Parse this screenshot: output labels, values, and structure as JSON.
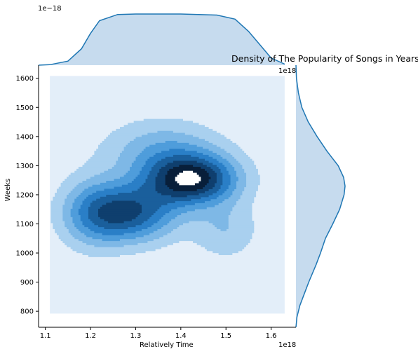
{
  "chart_data": {
    "type": "heatmap",
    "subtype": "joint-kde",
    "title": "Density of The Popularity of Songs in Years",
    "xlabel": "Relatively Time",
    "ylabel": "Weeks",
    "x_offset_label": "1e18",
    "x_offset_label_top": "1e18",
    "marginal_offset_label": "1e−18",
    "xlim": [
      1.085,
      1.655
    ],
    "ylim": [
      745,
      1645
    ],
    "xticks": [
      1.1,
      1.2,
      1.3,
      1.4,
      1.5,
      1.6
    ],
    "xtick_labels": [
      "1.1",
      "1.2",
      "1.3",
      "1.4",
      "1.5",
      "1.6"
    ],
    "yticks": [
      800,
      900,
      1000,
      1100,
      1200,
      1300,
      1400,
      1500,
      1600
    ],
    "ytick_labels": [
      "800",
      "900",
      "1000",
      "1100",
      "1200",
      "1300",
      "1400",
      "1500",
      "1600"
    ],
    "grid": false,
    "background_region": {
      "x": [
        1.11,
        1.63
      ],
      "y": [
        792,
        1608
      ]
    },
    "kde_peaks": [
      {
        "x": 1.282,
        "y": 1138,
        "weight": 1.0,
        "sx": 0.075,
        "sy": 70
      },
      {
        "x": 1.425,
        "y": 1252,
        "weight": 1.25,
        "sx": 0.07,
        "sy": 60
      },
      {
        "x": 1.36,
        "y": 1350,
        "weight": 0.45,
        "sx": 0.09,
        "sy": 75
      },
      {
        "x": 1.5,
        "y": 1080,
        "weight": 0.3,
        "sx": 0.05,
        "sy": 70
      },
      {
        "x": 1.2,
        "y": 1140,
        "weight": 0.35,
        "sx": 0.05,
        "sy": 90
      }
    ],
    "marginal_x": {
      "x": [
        1.085,
        1.11,
        1.15,
        1.18,
        1.2,
        1.22,
        1.26,
        1.3,
        1.4,
        1.48,
        1.52,
        1.55,
        1.58,
        1.6,
        1.63
      ],
      "density": [
        0.0,
        0.01,
        0.08,
        0.32,
        0.62,
        0.87,
        0.99,
        1.0,
        1.0,
        0.98,
        0.9,
        0.66,
        0.35,
        0.14,
        0.02
      ]
    },
    "marginal_y": {
      "y": [
        745,
        780,
        820,
        860,
        900,
        960,
        1000,
        1050,
        1100,
        1150,
        1200,
        1230,
        1260,
        1300,
        1350,
        1400,
        1450,
        1500,
        1550,
        1600,
        1645
      ],
      "density": [
        0.0,
        0.02,
        0.08,
        0.17,
        0.26,
        0.41,
        0.5,
        0.6,
        0.75,
        0.89,
        0.98,
        1.0,
        0.97,
        0.86,
        0.63,
        0.43,
        0.25,
        0.12,
        0.05,
        0.01,
        0.0
      ]
    },
    "levels": [
      0.1,
      0.22,
      0.34,
      0.46,
      0.58,
      0.7,
      0.82,
      0.94
    ],
    "level_colors": [
      "#a9d0ef",
      "#7eb8e6",
      "#4f9ddb",
      "#2a7fc7",
      "#1a5f9c",
      "#0f3f6e",
      "#081f3a",
      "#ffffff"
    ],
    "background_color": "#e3eef9",
    "marginal_line_color": "#1f77b4",
    "marginal_fill_color": "#c6dbee"
  }
}
